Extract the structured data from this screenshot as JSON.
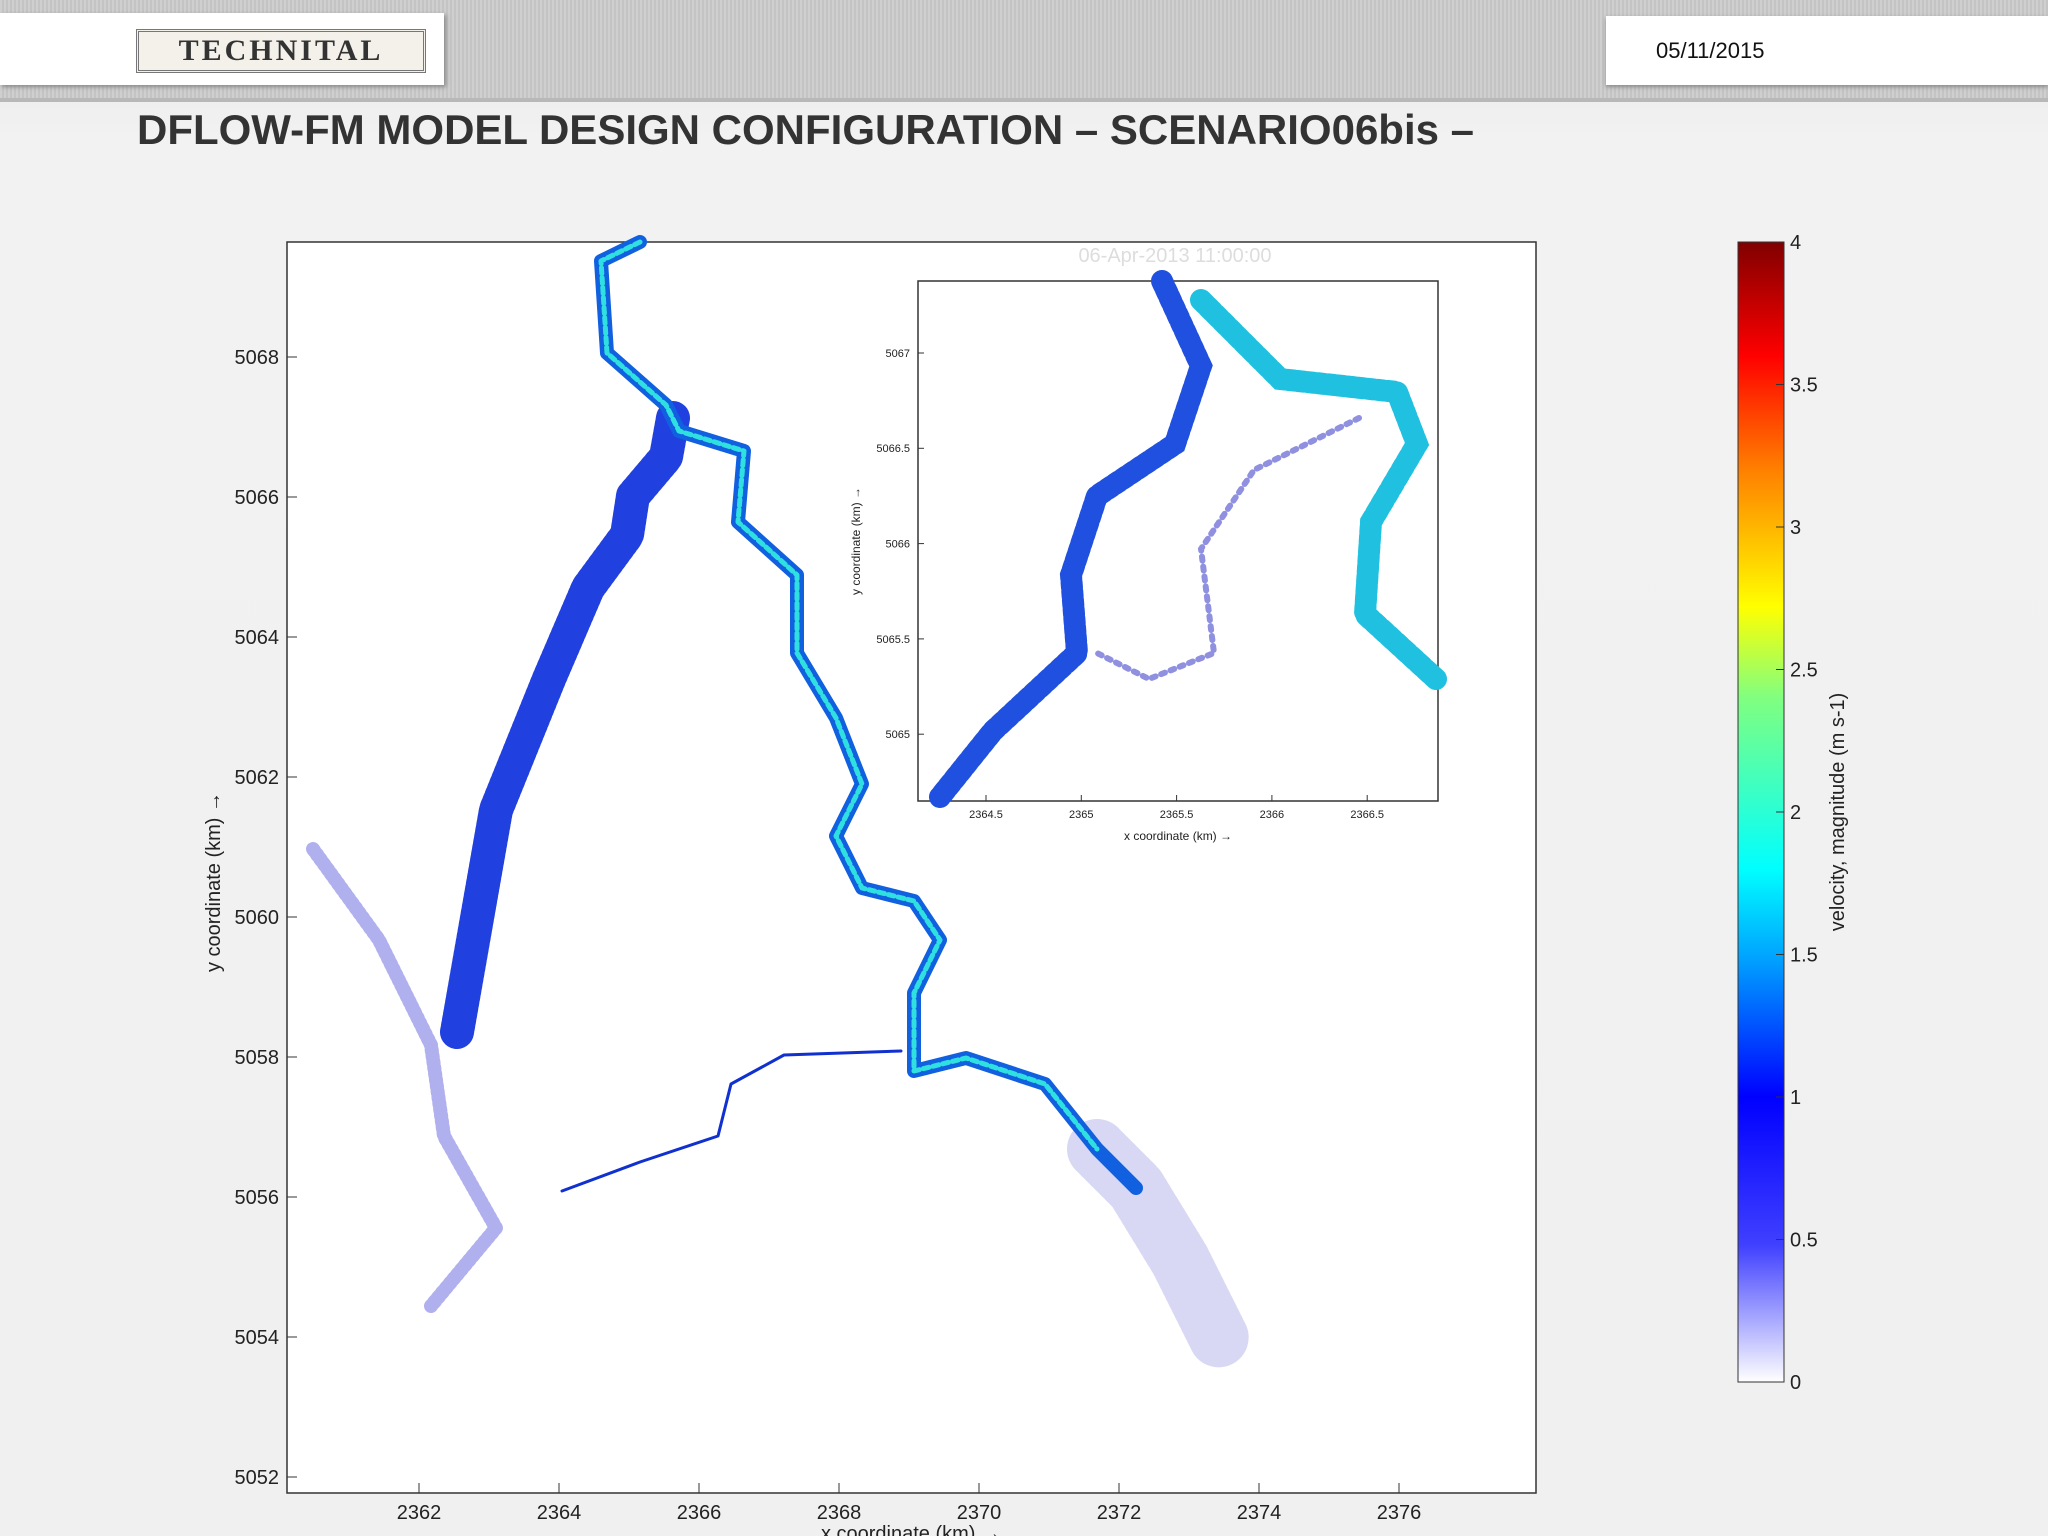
{
  "header": {
    "logo": "TECHNITAL",
    "date": "05/11/2015",
    "title": "DFLOW-FM MODEL DESIGN CONFIGURATION – SCENARIO06bis –"
  },
  "main_plot": {
    "timestamp": "06-Apr-2013 11:00:00",
    "x_label": "x coordinate (km) →",
    "y_label": "y coordinate (km) →",
    "x_ticks": [
      "2362",
      "2364",
      "2366",
      "2368",
      "2370",
      "2372",
      "2374",
      "2376"
    ],
    "y_ticks": [
      "5068",
      "5066",
      "5064",
      "5062",
      "5060",
      "5058",
      "5056",
      "5054",
      "5052"
    ]
  },
  "inset": {
    "x_label": "x coordinate (km) →",
    "y_label": "y coordinate (km) →",
    "x_ticks": [
      "2364.5",
      "2365",
      "2365.5",
      "2366",
      "2366.5"
    ],
    "y_ticks": [
      "5067",
      "5066.5",
      "5066",
      "5065.5",
      "5065"
    ]
  },
  "colorbar": {
    "label": "velocity, magnitude (m s-1)",
    "ticks": [
      "0",
      "0.5",
      "1",
      "1.5",
      "2",
      "2.5",
      "3",
      "3.5",
      "4"
    ]
  }
}
